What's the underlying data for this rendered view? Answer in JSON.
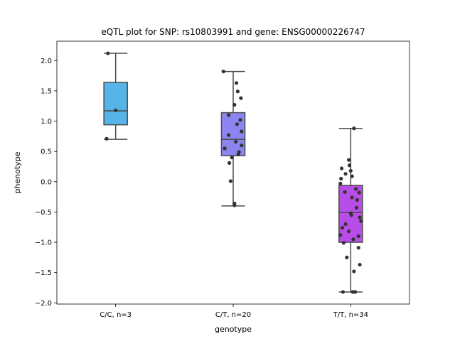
{
  "chart_data": {
    "type": "box",
    "title": "eQTL plot for SNP: rs10803991 and gene: ENSG00000226747",
    "xlabel": "genotype",
    "ylabel": "phenotype",
    "ylim": [
      -2.02,
      2.32
    ],
    "yticks": [
      -2.0,
      -1.5,
      -1.0,
      -0.5,
      0.0,
      0.5,
      1.0,
      1.5,
      2.0
    ],
    "ytick_labels": [
      "−2.0",
      "−1.5",
      "−1.0",
      "−0.5",
      "0.0",
      "0.5",
      "1.0",
      "1.5",
      "2.0"
    ],
    "grid": false,
    "categories": [
      "C/C, n=3",
      "C/T, n=20",
      "T/T, n=34"
    ],
    "boxes": [
      {
        "category": "C/C, n=3",
        "color": "#56b4e9",
        "whisker_low": 0.7,
        "q1": 0.94,
        "median": 1.17,
        "q3": 1.64,
        "whisker_high": 2.12
      },
      {
        "category": "C/T, n=20",
        "color": "#8c85f0",
        "whisker_low": -0.4,
        "q1": 0.43,
        "median": 0.7,
        "q3": 1.14,
        "whisker_high": 1.82
      },
      {
        "category": "T/T, n=34",
        "color": "#b84de8",
        "whisker_low": -1.82,
        "q1": -1.0,
        "median": -0.51,
        "q3": -0.06,
        "whisker_high": 0.88
      }
    ],
    "points": [
      {
        "category": "C/C, n=3",
        "values": [
          2.12,
          1.18,
          0.71
        ],
        "jitter": [
          -0.12,
          0.0,
          -0.14
        ]
      },
      {
        "category": "C/T, n=20",
        "values": [
          1.82,
          1.63,
          1.49,
          1.38,
          1.27,
          1.1,
          1.02,
          0.95,
          0.83,
          0.77,
          0.66,
          0.6,
          0.55,
          0.49,
          0.45,
          0.4,
          0.31,
          0.01,
          -0.36,
          -0.39
        ],
        "jitter": [
          -0.15,
          0.05,
          0.07,
          0.12,
          0.02,
          -0.07,
          0.11,
          0.06,
          0.13,
          -0.07,
          0.04,
          0.13,
          -0.13,
          0.09,
          0.08,
          -0.02,
          -0.06,
          -0.04,
          0.02,
          0.02
        ]
      },
      {
        "category": "T/T, n=34",
        "values": [
          0.88,
          0.36,
          0.27,
          0.22,
          0.18,
          0.13,
          0.09,
          0.05,
          -0.03,
          -0.12,
          -0.17,
          -0.18,
          -0.26,
          -0.3,
          -0.43,
          -0.52,
          -0.55,
          -0.59,
          -0.65,
          -0.7,
          -0.76,
          -0.82,
          -0.88,
          -0.9,
          -0.95,
          -1.01,
          -1.09,
          -1.25,
          -1.37,
          -1.48,
          -1.82,
          -1.82,
          -1.82,
          -1.82
        ],
        "jitter": [
          0.05,
          -0.03,
          -0.02,
          -0.14,
          0.0,
          -0.08,
          0.02,
          -0.15,
          -0.16,
          0.08,
          -0.09,
          0.13,
          0.02,
          0.1,
          0.09,
          0.0,
          0.01,
          0.14,
          0.16,
          -0.08,
          -0.13,
          -0.03,
          -0.16,
          0.12,
          0.04,
          -0.11,
          0.12,
          -0.06,
          0.14,
          0.05,
          -0.12,
          0.03,
          0.06,
          0.07
        ]
      }
    ]
  }
}
